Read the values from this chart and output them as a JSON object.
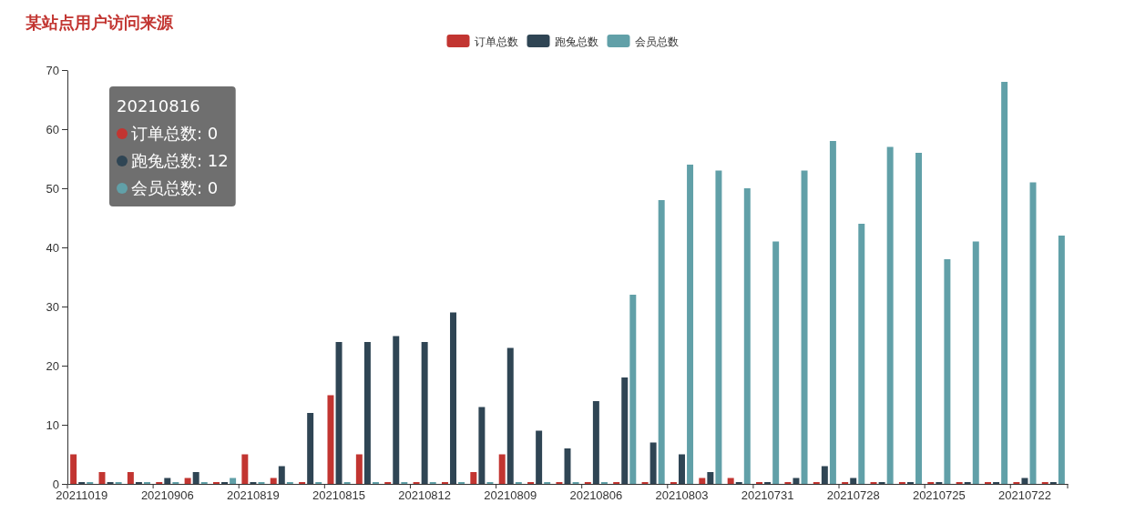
{
  "chart_data": {
    "type": "bar",
    "title": "某站点用户访问来源",
    "categories": [
      "20211019",
      null,
      null,
      "20210906",
      null,
      null,
      "20210819",
      null,
      null,
      "20210815",
      null,
      null,
      "20210812",
      null,
      null,
      "20210809",
      null,
      null,
      "20210806",
      null,
      null,
      "20210803",
      null,
      null,
      "20210731",
      null,
      null,
      "20210728",
      null,
      null,
      "20210725",
      null,
      null,
      "20210722",
      null
    ],
    "series": [
      {
        "name": "订单总数",
        "color": "#c23531",
        "values": [
          5,
          2,
          2,
          0,
          1,
          0,
          5,
          1,
          0,
          15,
          5,
          0,
          0,
          0,
          2,
          5,
          0,
          0,
          0,
          0,
          0,
          0,
          1,
          1,
          0,
          0,
          0,
          0,
          0,
          0,
          0,
          0,
          0,
          0,
          0
        ]
      },
      {
        "name": "跑兔总数",
        "color": "#2f4554",
        "values": [
          0,
          0,
          0,
          1,
          2,
          0,
          0,
          3,
          12,
          24,
          24,
          25,
          24,
          29,
          13,
          23,
          9,
          6,
          14,
          18,
          7,
          5,
          2,
          0,
          0,
          1,
          3,
          1,
          0,
          0,
          0,
          0,
          0,
          1,
          0
        ]
      },
      {
        "name": "会员总数",
        "color": "#61a0a8",
        "values": [
          0,
          0,
          0,
          0,
          0,
          1,
          0,
          0,
          0,
          0,
          0,
          0,
          0,
          0,
          0,
          0,
          0,
          0,
          0,
          32,
          48,
          54,
          53,
          50,
          41,
          53,
          58,
          44,
          57,
          56,
          38,
          41,
          68,
          51,
          42
        ]
      }
    ],
    "ylim": [
      0,
      70
    ],
    "yticks": [
      0,
      10,
      20,
      30,
      40,
      50,
      60,
      70
    ],
    "legend": "top",
    "annotations": [
      "20210816",
      "订单总数: 0",
      "跑兔总数: 12",
      "会员总数: 0"
    ]
  }
}
